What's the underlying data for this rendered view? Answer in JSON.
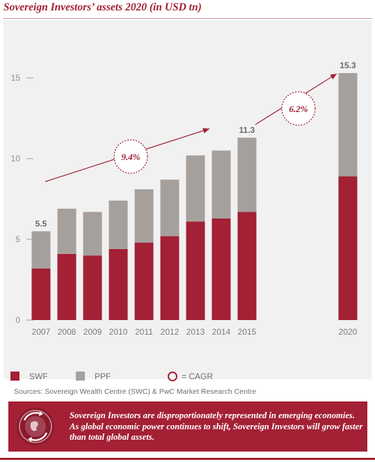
{
  "title": "Sovereign Investors’ assets 2020 (in USD tn)",
  "source": "Sources: Sovereign Wealth Centre (SWC) & PwC Market Research Centre",
  "callout_text": "Sovereign Investors are disproportionately represented in emerging economies. As global economic power continues to shift, Sovereign Investors will grow faster than total global assets.",
  "callout_icon": "globe-cycle-icon",
  "colors": {
    "swf": "#a32035",
    "ppf": "#a6a09c",
    "accent": "#a32035",
    "panel": "#f1f1f1"
  },
  "legend": {
    "swf_label": "SWF",
    "ppf_label": "PPF",
    "cagr_label": "= CAGR"
  },
  "chart_data": {
    "type": "bar",
    "stacked": true,
    "categories": [
      "2007",
      "2008",
      "2009",
      "2010",
      "2011",
      "2012",
      "2013",
      "2014",
      "2015",
      "2020"
    ],
    "series": [
      {
        "name": "SWF",
        "values": [
          3.2,
          4.1,
          4.0,
          4.4,
          4.8,
          5.2,
          6.1,
          6.3,
          6.7,
          8.9
        ]
      },
      {
        "name": "PPF",
        "values": [
          2.3,
          2.8,
          2.7,
          3.0,
          3.3,
          3.5,
          4.1,
          4.2,
          4.6,
          6.4
        ]
      }
    ],
    "totals_labels": [
      {
        "category": "2007",
        "text": "5.5"
      },
      {
        "category": "2015",
        "text": "11.3"
      },
      {
        "category": "2020",
        "text": "15.3"
      }
    ],
    "cagr": [
      {
        "text": "9.4%",
        "from": "2007",
        "to": "2015"
      },
      {
        "text": "6.2%",
        "from": "2015",
        "to": "2020"
      }
    ],
    "ylim": [
      0,
      16
    ],
    "yticks": [
      0,
      5,
      10,
      15
    ],
    "xlabel": "",
    "ylabel": "",
    "grid": false,
    "legend_position": "bottom-left"
  }
}
